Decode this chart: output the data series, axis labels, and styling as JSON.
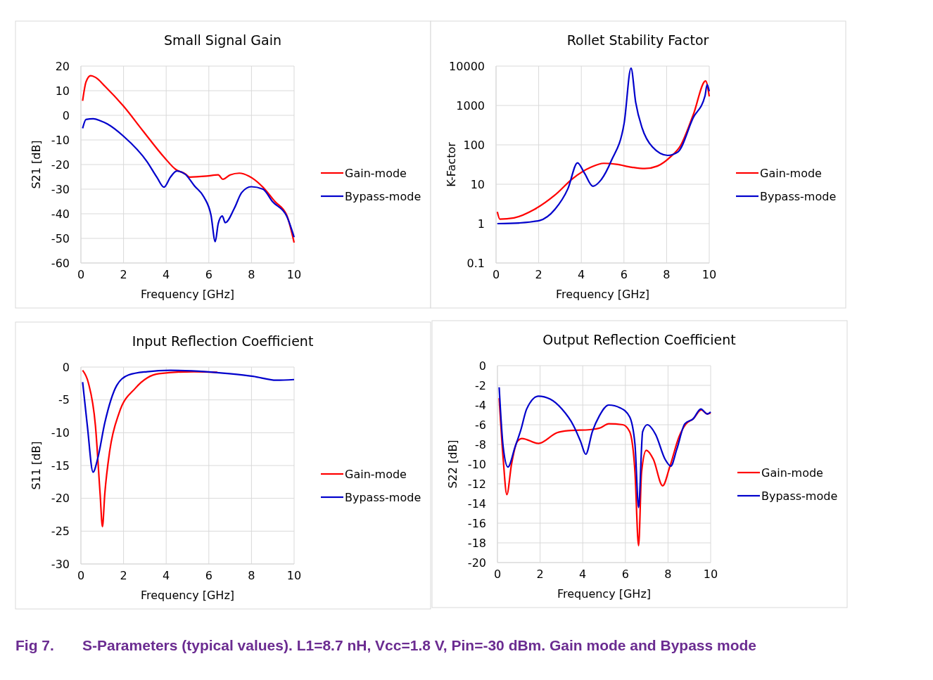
{
  "chart_data": [
    {
      "type": "line",
      "title": "Small Signal Gain",
      "xlabel": "Frequency [GHz]",
      "ylabel": "S21 [dB]",
      "xlim": [
        0,
        10
      ],
      "xticks": [
        0,
        2,
        4,
        6,
        8,
        10
      ],
      "ylim": [
        -60,
        20
      ],
      "yticks": [
        -60,
        -50,
        -40,
        -30,
        -20,
        -10,
        0,
        10,
        20
      ],
      "grid": true,
      "legend": "right",
      "annotations": [
        "Fig 7.    S-Parameters (typical values). L1=8.7 nH, Vcc=1.8 V, Pin=-30 dBm. Gain mode and Bypass mode"
      ],
      "series": [
        {
          "name": "Gain-mode",
          "color": "#ff0000",
          "x": [
            0.08,
            0.24,
            0.46,
            0.69,
            1.13,
            2.0,
            2.9,
            3.9,
            4.45,
            4.9,
            5.1,
            5.9,
            6.44,
            6.66,
            7.0,
            7.43,
            7.88,
            8.54,
            9.1,
            9.65,
            10
          ],
          "values": [
            5.9,
            13.6,
            16.1,
            15.4,
            11.8,
            3.7,
            -6.2,
            -17,
            -22,
            -23.8,
            -25.1,
            -24.7,
            -24.2,
            -26,
            -24.2,
            -23.5,
            -24.7,
            -29.2,
            -35,
            -40.5,
            -51.7
          ]
        },
        {
          "name": "Bypass-mode",
          "color": "#0000cc",
          "x": [
            0.08,
            0.24,
            0.58,
            0.91,
            1.24,
            2.0,
            3.1,
            3.56,
            3.9,
            4.2,
            4.5,
            4.9,
            5.33,
            5.77,
            6.1,
            6.3,
            6.44,
            6.63,
            6.77,
            7.2,
            7.54,
            7.99,
            8.54,
            8.98,
            9.65,
            10
          ],
          "values": [
            -5.3,
            -1.7,
            -1.4,
            -2.2,
            -3.5,
            -8.5,
            -18.8,
            -25.1,
            -29.2,
            -25.1,
            -22.6,
            -24,
            -28.7,
            -33.2,
            -40.5,
            -51.3,
            -44,
            -40.9,
            -43.6,
            -37.7,
            -31.4,
            -29,
            -30,
            -35,
            -40.9,
            -49.5
          ]
        }
      ]
    },
    {
      "type": "line",
      "title": "Rollet Stability Factor",
      "xlabel": "Frequency [GHz]",
      "ylabel": "K-Factor",
      "log": "y",
      "xlim": [
        0,
        10
      ],
      "xticks": [
        0,
        2,
        4,
        6,
        8,
        10
      ],
      "ylim": [
        0.1,
        10000
      ],
      "yticks": [
        0.1,
        1,
        10,
        100,
        1000,
        10000
      ],
      "grid": true,
      "legend": "right",
      "series": [
        {
          "name": "Gain-mode",
          "color": "#ff0000",
          "x": [
            0.06,
            0.18,
            0.84,
            1.8,
            2.76,
            3.6,
            4.45,
            5.05,
            5.65,
            6.37,
            6.97,
            7.57,
            8.17,
            8.65,
            9.25,
            9.83,
            10
          ],
          "values": [
            2.0,
            1.3,
            1.4,
            2.3,
            5.3,
            14,
            27,
            34,
            32,
            27,
            25,
            29,
            49,
            95,
            580,
            4200,
            1700
          ]
        },
        {
          "name": "Bypass-mode",
          "color": "#0000cc",
          "x": [
            0.06,
            1.08,
            2.04,
            2.76,
            3.37,
            3.82,
            4.15,
            4.54,
            4.93,
            5.41,
            6.01,
            6.33,
            6.55,
            6.85,
            7.33,
            8.05,
            8.53,
            9.25,
            9.8,
            9.9,
            10
          ],
          "values": [
            1.0,
            1.04,
            1.2,
            2.3,
            7.7,
            35,
            19,
            8.9,
            13,
            40,
            360,
            8900,
            1200,
            270,
            89,
            54,
            66,
            490,
            1740,
            3400,
            2300
          ]
        }
      ]
    },
    {
      "type": "line",
      "title": "Input Reflection Coefficient",
      "xlabel": "Frequency [GHz]",
      "ylabel": "S11 [dB]",
      "xlim": [
        0,
        10
      ],
      "xticks": [
        0,
        2,
        4,
        6,
        8,
        10
      ],
      "ylim": [
        -30,
        0
      ],
      "yticks": [
        -30,
        -25,
        -20,
        -15,
        -10,
        -5,
        0
      ],
      "grid": true,
      "legend": "right",
      "series": [
        {
          "name": "Gain-mode",
          "color": "#ff0000",
          "x": [
            0.08,
            0.35,
            0.68,
            0.9,
            1.01,
            1.12,
            1.35,
            1.79,
            2.56,
            3.66,
            5.3,
            6.4
          ],
          "values": [
            -0.5,
            -2.4,
            -8.9,
            -19.3,
            -24.3,
            -19.3,
            -12.8,
            -7,
            -3.2,
            -1.0,
            -0.7,
            -0.8
          ]
        },
        {
          "name": "Bypass-mode",
          "color": "#0000cc",
          "x": [
            0.08,
            0.3,
            0.57,
            0.79,
            1.12,
            1.68,
            2.23,
            3.1,
            4.2,
            5.87,
            6.97,
            8.07,
            9.17,
            10
          ],
          "values": [
            -2.3,
            -8.9,
            -16,
            -13.9,
            -8.5,
            -2.8,
            -1.2,
            -0.7,
            -0.5,
            -0.7,
            -1.0,
            -1.4,
            -2.0,
            -1.9
          ]
        }
      ]
    },
    {
      "type": "line",
      "title": "Output Reflection Coefficient",
      "xlabel": "Frequency [GHz]",
      "ylabel": "S22 [dB]",
      "xlim": [
        0,
        10
      ],
      "xticks": [
        0,
        2,
        4,
        6,
        8,
        10
      ],
      "ylim": [
        -20,
        0
      ],
      "yticks": [
        -20,
        -18,
        -16,
        -14,
        -12,
        -10,
        -8,
        -6,
        -4,
        -2,
        0
      ],
      "grid": true,
      "legend": "right",
      "series": [
        {
          "name": "Gain-mode",
          "color": "#ff0000",
          "x": [
            0.08,
            0.27,
            0.44,
            0.66,
            0.93,
            1.15,
            1.92,
            2.8,
            3.35,
            4.34,
            4.84,
            5.22,
            5.88,
            6.2,
            6.45,
            6.62,
            6.76,
            6.98,
            7.31,
            7.75,
            8.08,
            8.52,
            8.85,
            9.18,
            9.56,
            9.84,
            10
          ],
          "values": [
            -3.3,
            -9.5,
            -13.1,
            -10,
            -7.7,
            -7.4,
            -7.9,
            -6.8,
            -6.6,
            -6.5,
            -6.3,
            -5.9,
            -6.0,
            -6.7,
            -10.8,
            -18.3,
            -10.8,
            -8.6,
            -9.5,
            -12.2,
            -10.3,
            -7.2,
            -5.9,
            -5.4,
            -4.5,
            -4.9,
            -4.8
          ]
        },
        {
          "name": "Bypass-mode",
          "color": "#0000cc",
          "x": [
            0.08,
            0.27,
            0.49,
            0.82,
            1.1,
            1.37,
            1.92,
            2.47,
            3.02,
            3.57,
            3.9,
            4.14,
            4.45,
            4.78,
            5.22,
            5.77,
            6.2,
            6.45,
            6.62,
            6.81,
            7.03,
            7.42,
            7.86,
            8.13,
            8.41,
            8.79,
            9.18,
            9.54,
            9.84,
            10
          ],
          "values": [
            -2.2,
            -8.3,
            -10.3,
            -8.3,
            -6.5,
            -4.4,
            -3.1,
            -3.4,
            -4.4,
            -6.1,
            -7.7,
            -9.0,
            -6.7,
            -5.1,
            -4.0,
            -4.3,
            -5.2,
            -8.0,
            -14.4,
            -6.7,
            -6.0,
            -7.0,
            -9.5,
            -10.2,
            -8.5,
            -5.9,
            -5.4,
            -4.4,
            -4.9,
            -4.7
          ]
        }
      ]
    }
  ]
}
